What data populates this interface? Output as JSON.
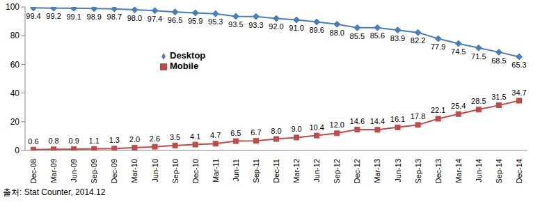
{
  "chart_data": {
    "type": "line",
    "categories": [
      "Dec-08",
      "Mar-09",
      "Jun-09",
      "Sep-09",
      "Dec-09",
      "Mar-10",
      "Jun-10",
      "Sep-10",
      "Dec-10",
      "Mar-11",
      "Jun-11",
      "Sep-11",
      "Dec-11",
      "Mar-12",
      "Jun-12",
      "Sep-12",
      "Dec-12",
      "Mar-13",
      "Jun-13",
      "Sep-13",
      "Dec-13",
      "Mar-14",
      "Jun-14",
      "Sep-14",
      "Dec-14"
    ],
    "series": [
      {
        "name": "Desktop",
        "color": "#4a7ebb",
        "marker": "diamond",
        "values": [
          99.4,
          99.2,
          99.1,
          98.9,
          98.7,
          98.0,
          97.4,
          96.5,
          95.9,
          95.3,
          93.5,
          93.3,
          92.0,
          91.0,
          89.6,
          88.0,
          85.5,
          85.6,
          83.9,
          82.2,
          77.9,
          74.5,
          71.5,
          68.5,
          65.3
        ],
        "value_labels": [
          "99.4",
          "99.2",
          "99.1",
          "98.9",
          "98.7",
          "98.0",
          "97.4",
          "96.5",
          "95.9",
          "95.3",
          "93.5",
          "93.3",
          "92.0",
          "91.0",
          "89.6",
          "88.0",
          "85.5",
          "85.6",
          "83.9",
          "82.2",
          "77.9",
          "74.5",
          "71.5",
          "68.5",
          "65.3"
        ]
      },
      {
        "name": "Mobile",
        "color": "#be4b48",
        "marker": "square",
        "values": [
          0.6,
          0.8,
          0.9,
          1.1,
          1.3,
          2.0,
          2.6,
          3.5,
          4.1,
          4.7,
          6.5,
          6.7,
          8.0,
          9.0,
          10.4,
          12.0,
          14.6,
          14.4,
          16.1,
          17.8,
          22.1,
          25.4,
          28.5,
          31.5,
          34.7
        ],
        "value_labels": [
          "0.6",
          "0.8",
          "0.9",
          "1.1",
          "1.3",
          "2.0",
          "2.6",
          "3.5",
          "4.1",
          "4.7",
          "6.5",
          "6.7",
          "8.0",
          "9.0",
          "10.4",
          "12.0",
          "14.6",
          "14.4",
          "16.1",
          "17.8",
          "22.1",
          "25.4",
          "28.5",
          "31.5",
          "34.7"
        ]
      }
    ],
    "ylim": [
      0,
      100
    ],
    "yticks": [
      0,
      20,
      40,
      60,
      80,
      100
    ],
    "grid": false,
    "legend": "left",
    "data_labels": true,
    "source": "출처: Stat Counter, 2014.12"
  }
}
